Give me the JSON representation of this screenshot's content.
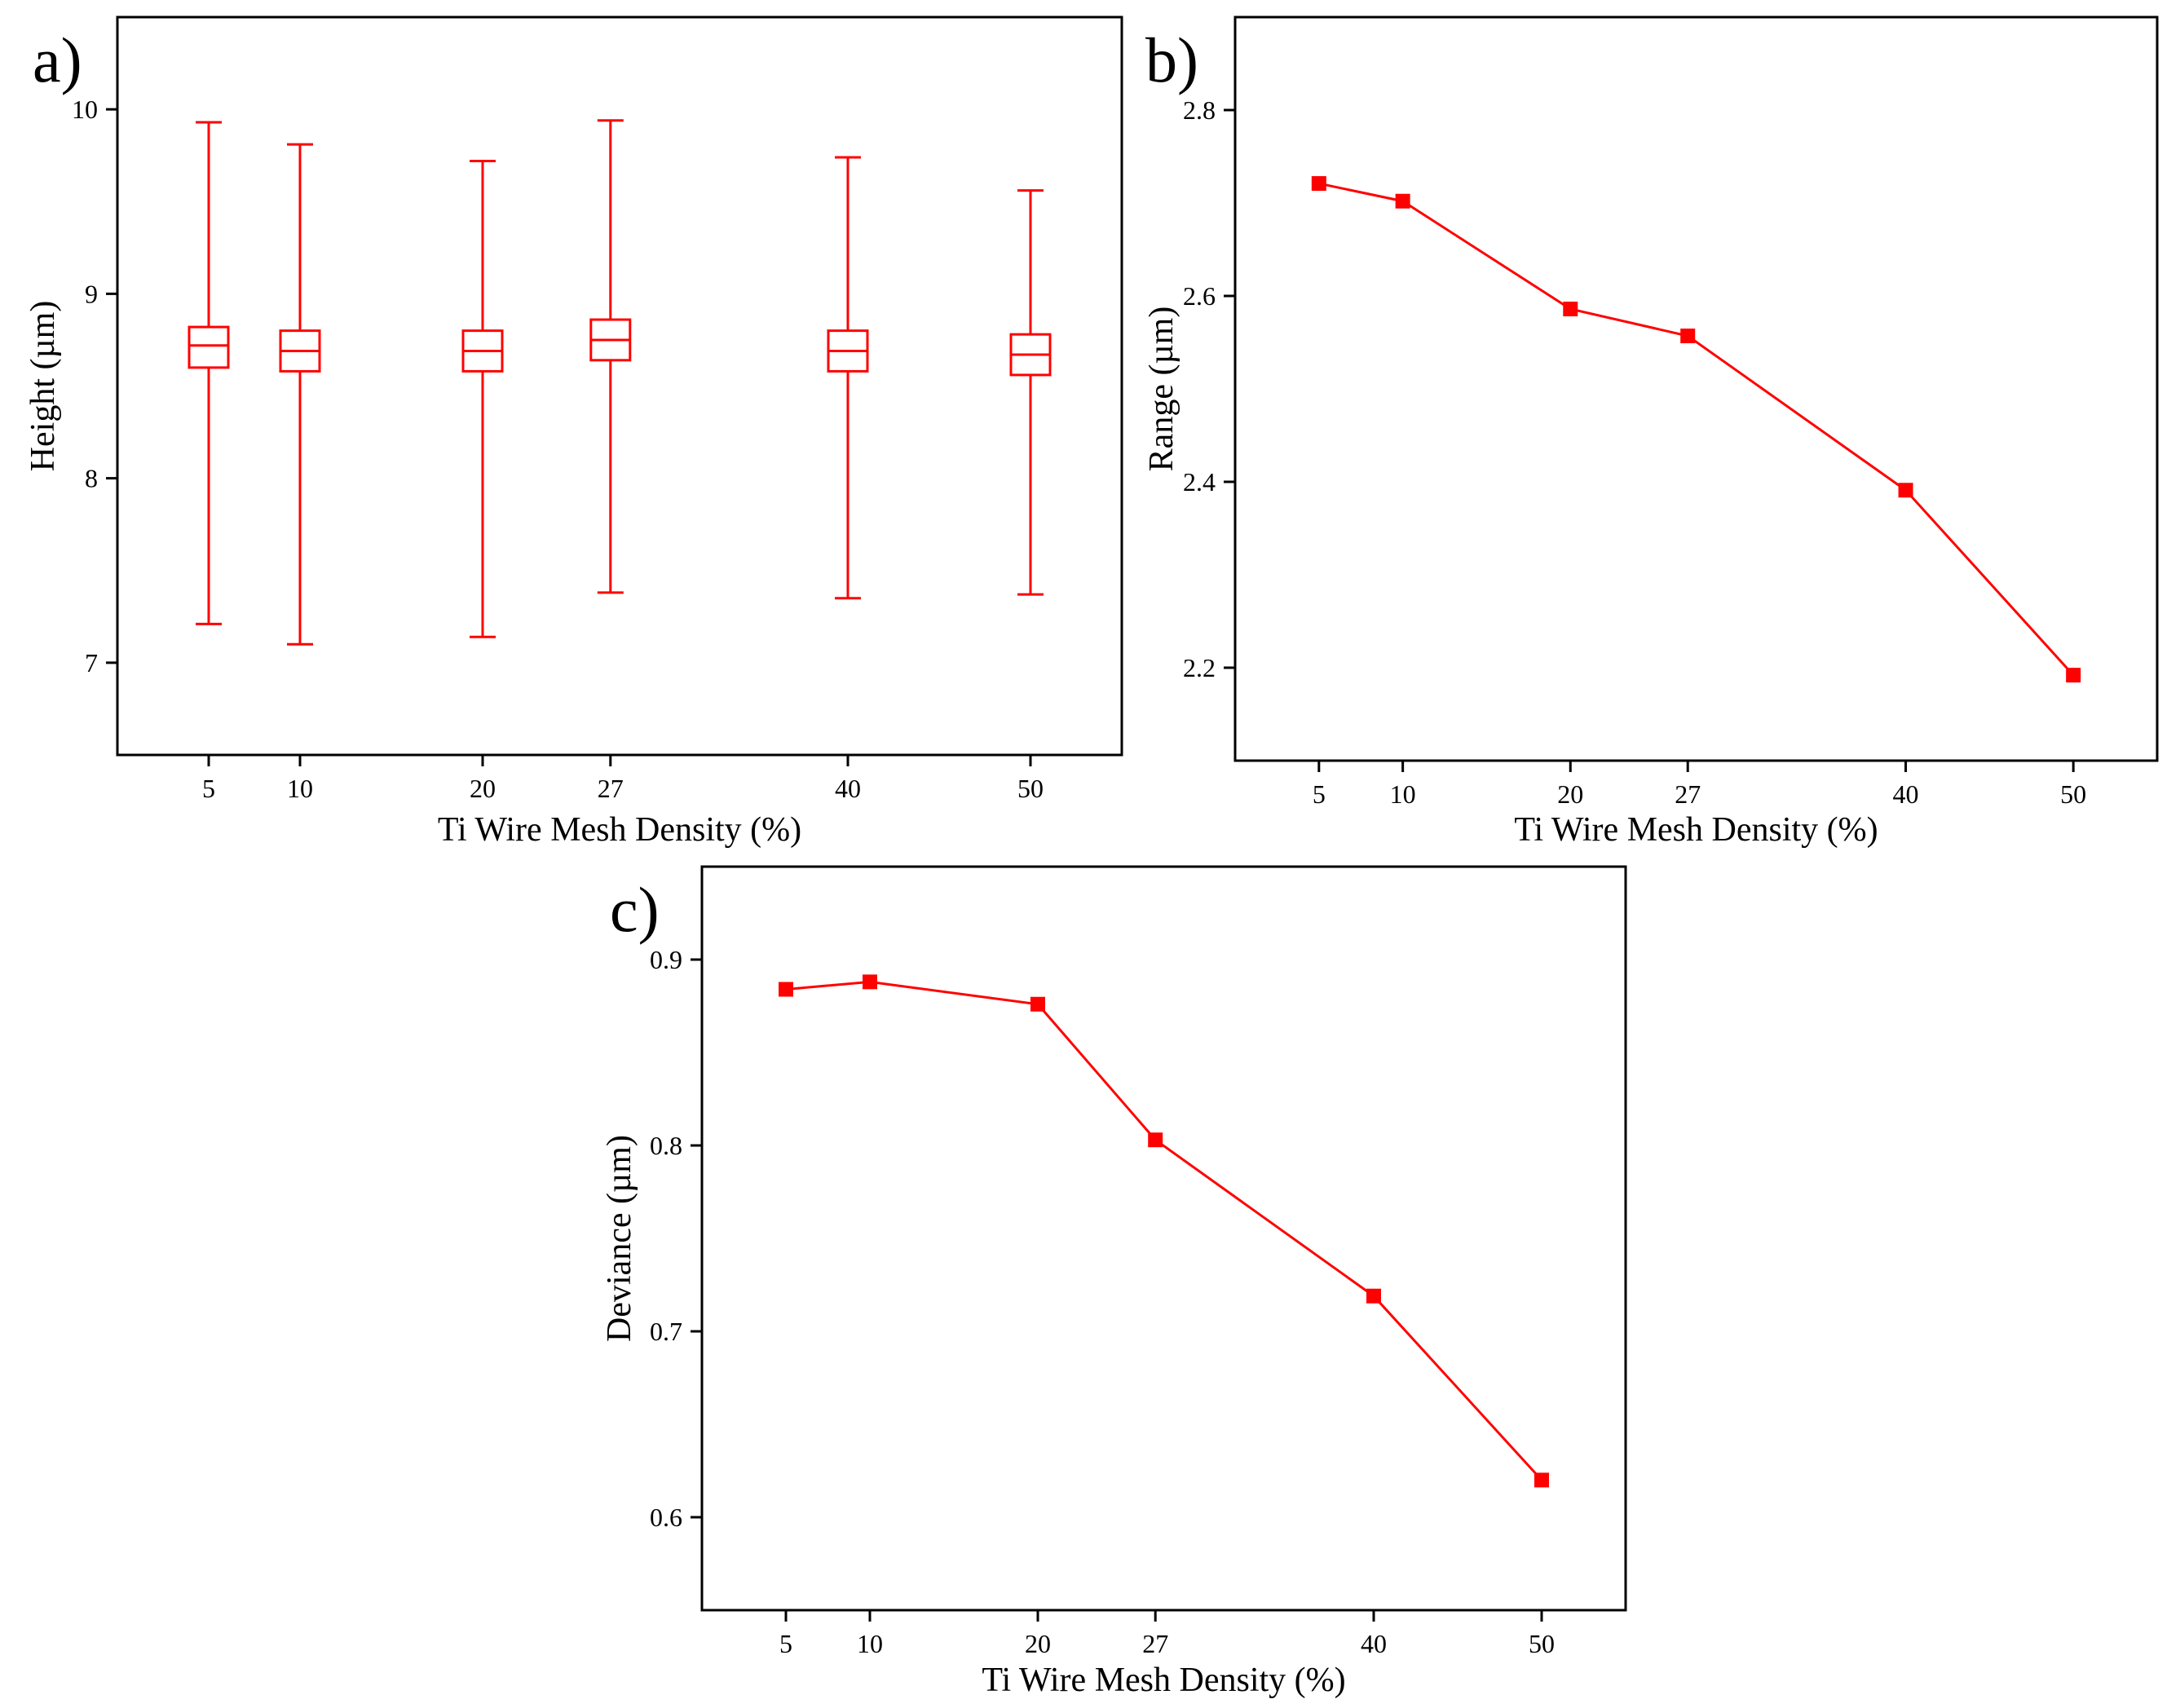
{
  "figure": {
    "series_color": "#ff0000",
    "axis_color": "#000000",
    "background": "#ffffff"
  },
  "chart_data": [
    {
      "id": "a",
      "panel_label": "a)",
      "type": "box",
      "xlabel": "Ti Wire Mesh Density (%)",
      "ylabel": "Height (µm)",
      "x_ticks": [
        5,
        10,
        20,
        27,
        40,
        50
      ],
      "y_ticks": [
        7,
        8,
        9,
        10
      ],
      "xlim": [
        0,
        55
      ],
      "ylim": [
        6.5,
        10.5
      ],
      "grid": false,
      "boxes": [
        {
          "x": 5,
          "min": 7.21,
          "q1": 8.6,
          "median": 8.72,
          "q3": 8.82,
          "max": 9.93
        },
        {
          "x": 10,
          "min": 7.1,
          "q1": 8.58,
          "median": 8.69,
          "q3": 8.8,
          "max": 9.81
        },
        {
          "x": 20,
          "min": 7.14,
          "q1": 8.58,
          "median": 8.69,
          "q3": 8.8,
          "max": 9.72
        },
        {
          "x": 27,
          "min": 7.38,
          "q1": 8.64,
          "median": 8.75,
          "q3": 8.86,
          "max": 9.94
        },
        {
          "x": 40,
          "min": 7.35,
          "q1": 8.58,
          "median": 8.69,
          "q3": 8.8,
          "max": 9.74
        },
        {
          "x": 50,
          "min": 7.37,
          "q1": 8.56,
          "median": 8.67,
          "q3": 8.78,
          "max": 9.56
        }
      ]
    },
    {
      "id": "b",
      "panel_label": "b)",
      "type": "line",
      "xlabel": "Ti Wire Mesh Density (%)",
      "ylabel": "Range (µm)",
      "x_ticks": [
        5,
        10,
        20,
        27,
        40,
        50
      ],
      "y_ticks": [
        2.2,
        2.4,
        2.6,
        2.8
      ],
      "xlim": [
        0,
        55
      ],
      "ylim": [
        2.1,
        2.9
      ],
      "grid": false,
      "x": [
        5,
        10,
        20,
        27,
        40,
        50
      ],
      "y": [
        2.721,
        2.702,
        2.586,
        2.557,
        2.391,
        2.192
      ]
    },
    {
      "id": "c",
      "panel_label": "c)",
      "type": "line",
      "xlabel": "Ti Wire Mesh Density (%)",
      "ylabel": "Deviance (µm)",
      "x_ticks": [
        5,
        10,
        20,
        27,
        40,
        50
      ],
      "y_ticks": [
        0.6,
        0.7,
        0.8,
        0.9
      ],
      "xlim": [
        0,
        55
      ],
      "ylim": [
        0.55,
        0.95
      ],
      "grid": false,
      "x": [
        5,
        10,
        20,
        27,
        40,
        50
      ],
      "y": [
        0.884,
        0.888,
        0.876,
        0.803,
        0.719,
        0.62
      ]
    }
  ]
}
